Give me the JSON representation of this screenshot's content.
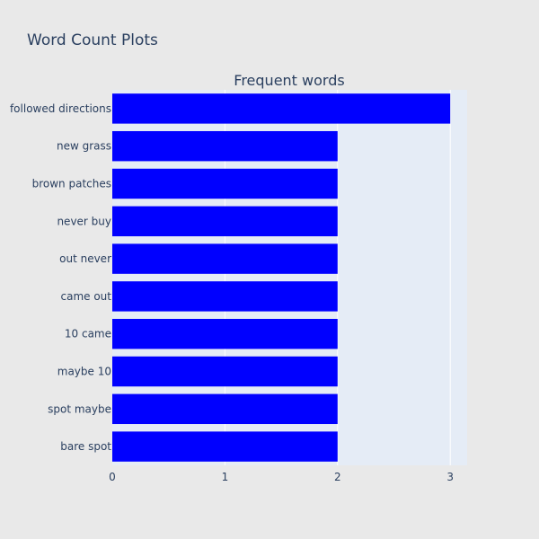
{
  "figure_title": "Word Count Plots",
  "chart_data": {
    "type": "bar",
    "orientation": "horizontal",
    "title": "Frequent words",
    "xlabel": "",
    "ylabel": "",
    "categories": [
      "followed directions",
      "new grass",
      "brown patches",
      "never buy",
      "out never",
      "came out",
      "10 came",
      "maybe 10",
      "spot maybe",
      "bare spot"
    ],
    "values": [
      3,
      2,
      2,
      2,
      2,
      2,
      2,
      2,
      2,
      2
    ],
    "xlim": [
      0,
      3.15
    ],
    "xticks": [
      "0",
      "1",
      "2",
      "3"
    ],
    "grid": true,
    "legend": "none",
    "bar_color": "#0000ff",
    "plot_bg": "#e5ecf6",
    "paper_bg": "#e9e9e9"
  }
}
